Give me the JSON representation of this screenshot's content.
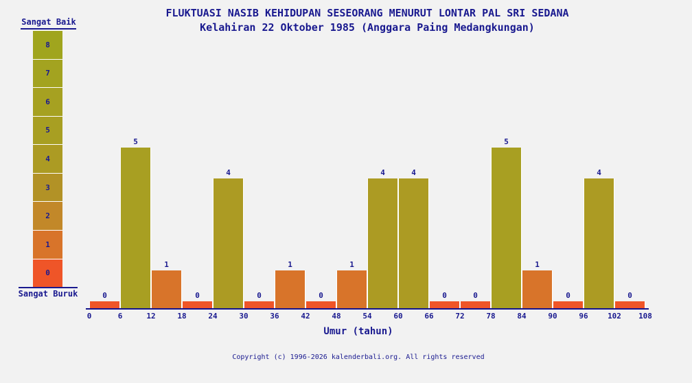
{
  "page": {
    "background_color": "#f2f2f2",
    "text_color": "#19198f"
  },
  "chart_data": {
    "type": "bar",
    "title": "FLUKTUASI NASIB KEHIDUPAN SESEORANG MENURUT LONTAR PAL SRI SEDANA",
    "subtitle": "Kelahiran 22 Oktober 1985 (Anggara Paing Medangkungan)",
    "xlabel": "Umur (tahun)",
    "x_ticks": [
      0,
      6,
      12,
      18,
      24,
      30,
      36,
      42,
      48,
      54,
      60,
      66,
      72,
      78,
      84,
      90,
      96,
      102,
      108
    ],
    "categories": [
      "0-6",
      "6-12",
      "12-18",
      "18-24",
      "24-30",
      "30-36",
      "36-42",
      "42-48",
      "48-54",
      "54-60",
      "60-66",
      "66-72",
      "72-78",
      "78-84",
      "84-90",
      "90-96",
      "96-102",
      "102-108"
    ],
    "values": [
      0,
      5,
      1,
      0,
      4,
      0,
      1,
      0,
      1,
      4,
      4,
      0,
      0,
      5,
      1,
      0,
      4,
      0
    ],
    "ylim": [
      0,
      8
    ],
    "bar_value_labels_shown": true,
    "grid": "off",
    "legend": {
      "position": "left",
      "top_label": "Sangat Baik",
      "bottom_label": "Sangat Buruk",
      "scale": [
        {
          "value": 8,
          "color": "#a0a51e"
        },
        {
          "value": 7,
          "color": "#a3a320"
        },
        {
          "value": 6,
          "color": "#a6a121"
        },
        {
          "value": 5,
          "color": "#a89f22"
        },
        {
          "value": 4,
          "color": "#ac9b23"
        },
        {
          "value": 3,
          "color": "#b29226"
        },
        {
          "value": 2,
          "color": "#c28829"
        },
        {
          "value": 1,
          "color": "#d8742a"
        },
        {
          "value": 0,
          "color": "#ef5528"
        }
      ]
    }
  },
  "footer": {
    "copyright": "Copyright (c) 1996-2026 kalenderbali.org. All rights reserved"
  }
}
